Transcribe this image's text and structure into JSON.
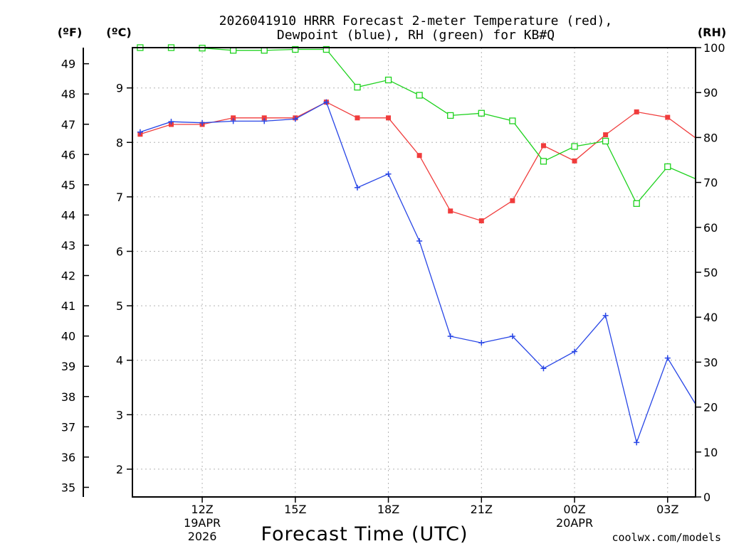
{
  "chart_data": {
    "type": "line",
    "title_line1": "2026041910 HRRR Forecast 2-meter Temperature (red),",
    "title_line2": "Dewpoint (blue), RH (green) for KB#Q",
    "xlabel": "Forecast Time (UTC)",
    "credit": "coolwx.com/models",
    "left_unit_f": "(ºF)",
    "left_unit_c": "(ºC)",
    "right_unit": "(RH)",
    "x_range": [
      9.75,
      27.9
    ],
    "x_ticks": [
      {
        "x": 12,
        "label": "12Z",
        "sub1": "19APR",
        "sub2": "2026"
      },
      {
        "x": 15,
        "label": "15Z",
        "sub1": "",
        "sub2": ""
      },
      {
        "x": 18,
        "label": "18Z",
        "sub1": "",
        "sub2": ""
      },
      {
        "x": 21,
        "label": "21Z",
        "sub1": "",
        "sub2": ""
      },
      {
        "x": 24,
        "label": "00Z",
        "sub1": "20APR",
        "sub2": ""
      },
      {
        "x": 27,
        "label": "03Z",
        "sub1": "",
        "sub2": ""
      }
    ],
    "c_range": [
      1.49,
      9.74
    ],
    "c_ticks": [
      2,
      3,
      4,
      5,
      6,
      7,
      8,
      9
    ],
    "f_ticks": [
      35,
      36,
      37,
      38,
      39,
      40,
      41,
      42,
      43,
      44,
      45,
      46,
      47,
      48,
      49
    ],
    "rh_range": [
      0,
      100
    ],
    "rh_ticks": [
      0,
      10,
      20,
      30,
      40,
      50,
      60,
      70,
      80,
      90,
      100
    ],
    "series": [
      {
        "name": "Temperature",
        "color": "#f03c3c",
        "marker": "filled-square",
        "axis": "celsius",
        "x": [
          10,
          11,
          12,
          13,
          14,
          15,
          16,
          17,
          18,
          19,
          20,
          21,
          22,
          23,
          24,
          25,
          26,
          27,
          28
        ],
        "values": [
          8.15,
          8.33,
          8.33,
          8.45,
          8.45,
          8.45,
          8.74,
          8.45,
          8.45,
          7.76,
          6.74,
          6.56,
          6.93,
          7.94,
          7.66,
          8.14,
          8.56,
          8.46,
          8.04
        ]
      },
      {
        "name": "Dewpoint",
        "color": "#2846e6",
        "marker": "plus",
        "axis": "celsius",
        "x": [
          10,
          11,
          12,
          13,
          14,
          15,
          16,
          17,
          18,
          19,
          20,
          21,
          22,
          23,
          24,
          25,
          26,
          27,
          28
        ],
        "values": [
          8.19,
          8.38,
          8.36,
          8.39,
          8.39,
          8.43,
          8.74,
          7.17,
          7.42,
          6.19,
          4.44,
          4.32,
          4.44,
          3.85,
          4.16,
          4.82,
          2.49,
          4.04,
          3.1
        ]
      },
      {
        "name": "RH",
        "color": "#1ed21e",
        "marker": "open-square",
        "axis": "rh",
        "x": [
          10,
          11,
          12,
          13,
          14,
          15,
          16,
          17,
          18,
          19,
          20,
          21,
          22,
          23,
          24,
          25,
          26,
          27,
          28
        ],
        "values": [
          100,
          100,
          99.9,
          99.4,
          99.4,
          99.6,
          99.6,
          91.2,
          92.8,
          89.4,
          84.9,
          85.4,
          83.7,
          74.7,
          78.0,
          79.2,
          65.3,
          73.5,
          70.5
        ]
      }
    ]
  }
}
